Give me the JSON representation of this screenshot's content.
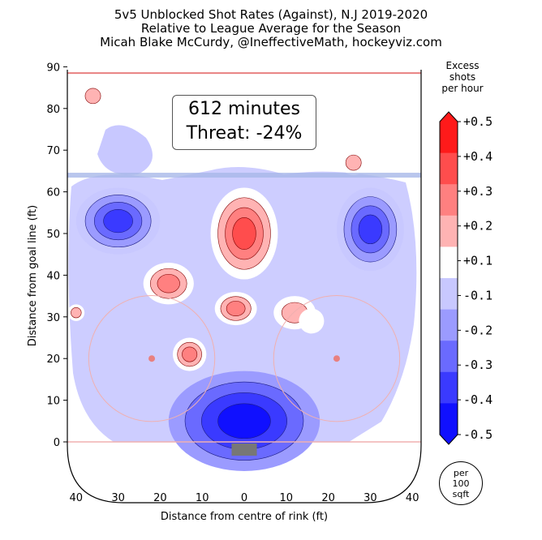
{
  "header": {
    "title_line1": "5v5 Unblocked Shot Rates (Against), N.J 2019-2020",
    "title_line2": "Relative to League Average for the Season",
    "title_line3": "Micah Blake McCurdy, @IneffectiveMath, hockeyviz.com"
  },
  "info_box": {
    "minutes": "612 minutes",
    "threat": "Threat: -24%"
  },
  "colorbar": {
    "title_line1": "Excess",
    "title_line2": "shots",
    "title_line3": "per hour",
    "ticks": [
      "+0.5",
      "+0.4",
      "+0.3",
      "+0.2",
      "+0.1",
      "-0.1",
      "-0.2",
      "-0.3",
      "-0.4",
      "-0.5"
    ],
    "colors": [
      "#ff1a1a",
      "#ff4d4d",
      "#ff8080",
      "#ffb3b3",
      "#ffffff",
      "#c8c8ff",
      "#9b9bff",
      "#6a6aff",
      "#3a3aff",
      "#1010ff"
    ]
  },
  "per_area": {
    "line1": "per",
    "line2": "100",
    "line3": "sqft"
  },
  "chart_data": {
    "type": "heatmap",
    "xlabel": "Distance from centre of rink (ft)",
    "ylabel": "Distance from goal line (ft)",
    "xlim": [
      -42,
      42
    ],
    "ylim": [
      -11,
      90
    ],
    "x_ticks": [
      "40",
      "30",
      "20",
      "10",
      "0",
      "10",
      "20",
      "30",
      "40"
    ],
    "x_tick_values": [
      -40,
      -30,
      -20,
      -10,
      0,
      10,
      20,
      30,
      40
    ],
    "y_ticks": [
      0,
      10,
      20,
      30,
      40,
      50,
      60,
      70,
      80,
      90
    ],
    "blue_line_y": 64,
    "faceoff_dots": [
      {
        "x": -22,
        "y": 20
      },
      {
        "x": 22,
        "y": 20
      }
    ],
    "blobs": [
      {
        "label": "slot",
        "cx": 0,
        "cy": 5,
        "rx": 18,
        "ry": 12,
        "levels": [
          -0.2,
          -0.3,
          -0.4,
          -0.5
        ]
      },
      {
        "label": "point-left",
        "cx": -30,
        "cy": 53,
        "rx": 10,
        "ry": 8,
        "levels": [
          -0.1,
          -0.2,
          -0.3,
          -0.4
        ]
      },
      {
        "label": "point-right",
        "cx": 30,
        "cy": 51,
        "rx": 8,
        "ry": 10,
        "levels": [
          -0.1,
          -0.2,
          -0.3,
          -0.4
        ]
      },
      {
        "label": "high-centre",
        "cx": 0,
        "cy": 50,
        "rx": 8,
        "ry": 11,
        "levels": [
          0.1,
          0.2,
          0.3,
          0.4
        ]
      },
      {
        "label": "left-circle-top",
        "cx": -18,
        "cy": 38,
        "rx": 6,
        "ry": 5,
        "levels": [
          0.1,
          0.2,
          0.3
        ]
      },
      {
        "label": "centre-mid",
        "cx": -2,
        "cy": 32,
        "rx": 5,
        "ry": 4,
        "levels": [
          0.1,
          0.2,
          0.3
        ]
      },
      {
        "label": "right-mid",
        "cx": 12,
        "cy": 31,
        "rx": 5,
        "ry": 4,
        "levels": [
          0.1,
          0.2
        ]
      },
      {
        "label": "left-low",
        "cx": -13,
        "cy": 21,
        "rx": 4,
        "ry": 4,
        "levels": [
          0.1,
          0.2,
          0.3
        ]
      },
      {
        "label": "top-left",
        "cx": -36,
        "cy": 83,
        "rx": 3,
        "ry": 3,
        "levels": [
          0.1,
          0.2
        ]
      },
      {
        "label": "top-right",
        "cx": 26,
        "cy": 67,
        "rx": 3,
        "ry": 3,
        "levels": [
          0.1,
          0.2
        ]
      },
      {
        "label": "right-low-dot",
        "cx": 16,
        "cy": 29,
        "rx": 3,
        "ry": 3,
        "levels": [
          0.1
        ]
      },
      {
        "label": "far-left",
        "cx": -40,
        "cy": 31,
        "rx": 2,
        "ry": 2,
        "levels": [
          0.1,
          0.2
        ]
      }
    ]
  }
}
